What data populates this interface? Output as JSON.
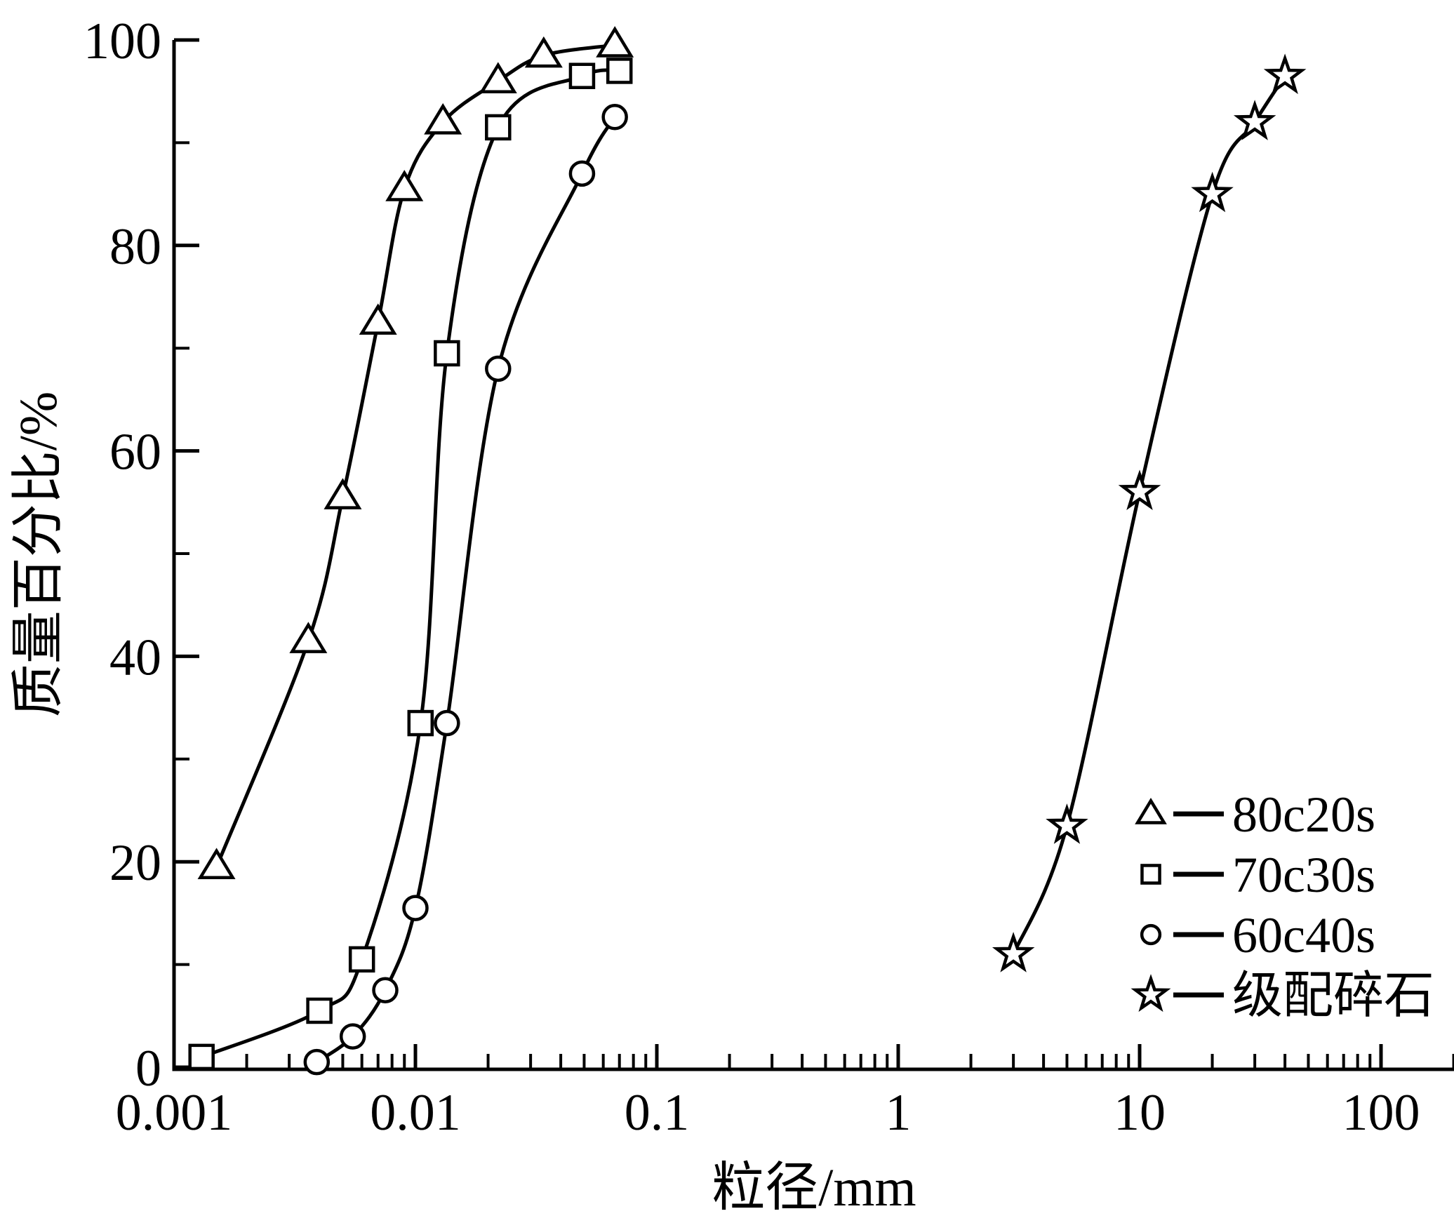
{
  "figure": {
    "background_color": "#ffffff",
    "ink_color": "#000000"
  },
  "chart_data": {
    "type": "line",
    "title": "",
    "x_axis": {
      "label": "粒径/mm",
      "scale": "log",
      "range": [
        0.001,
        200
      ],
      "major_tick_values": [
        0.001,
        0.01,
        0.1,
        1,
        10,
        100
      ],
      "major_tick_labels": [
        "0.001",
        "0.01",
        "0.1",
        "1",
        "10",
        "100"
      ],
      "minor_ticks_per_decade": [
        2,
        3,
        4,
        5,
        6,
        7,
        8,
        9
      ],
      "grid": false
    },
    "y_axis": {
      "label": "质量百分比/%",
      "range": [
        0,
        100
      ],
      "major_tick_values": [
        0,
        20,
        40,
        60,
        80,
        100
      ],
      "major_tick_labels": [
        "0",
        "20",
        "40",
        "60",
        "80",
        "100"
      ],
      "minor_tick_values": [
        10,
        30,
        50,
        70,
        90
      ],
      "grid": false
    },
    "legend": {
      "position": "lower-right",
      "entries": [
        "80c20s",
        "70c30s",
        "60c40s",
        "级配碎石"
      ]
    },
    "series": [
      {
        "name": "80c20s",
        "marker": "triangle",
        "color": "#000000",
        "points": [
          [
            0.0015,
            19.5
          ],
          [
            0.0036,
            41.5
          ],
          [
            0.005,
            55.5
          ],
          [
            0.007,
            72.5
          ],
          [
            0.009,
            85.5
          ],
          [
            0.013,
            92
          ],
          [
            0.022,
            96
          ],
          [
            0.034,
            98.5
          ],
          [
            0.067,
            99.5
          ]
        ]
      },
      {
        "name": "70c30s",
        "marker": "square",
        "color": "#000000",
        "points": [
          [
            0.0013,
            1
          ],
          [
            0.004,
            5.5
          ],
          [
            0.006,
            10.5
          ],
          [
            0.0105,
            33.5
          ],
          [
            0.0135,
            69.5
          ],
          [
            0.022,
            91.5
          ],
          [
            0.049,
            96.5
          ],
          [
            0.07,
            97
          ]
        ]
      },
      {
        "name": "60c40s",
        "marker": "circle",
        "color": "#000000",
        "points": [
          [
            0.0039,
            0.5
          ],
          [
            0.0055,
            3
          ],
          [
            0.0075,
            7.5
          ],
          [
            0.01,
            15.5
          ],
          [
            0.0135,
            33.5
          ],
          [
            0.022,
            68
          ],
          [
            0.049,
            87
          ],
          [
            0.067,
            92.5
          ]
        ]
      },
      {
        "name": "级配碎石",
        "marker": "star",
        "color": "#000000",
        "points": [
          [
            3,
            11
          ],
          [
            5,
            23.5
          ],
          [
            10,
            56
          ],
          [
            20,
            85
          ],
          [
            30,
            92
          ],
          [
            40,
            96.5
          ]
        ]
      }
    ]
  }
}
